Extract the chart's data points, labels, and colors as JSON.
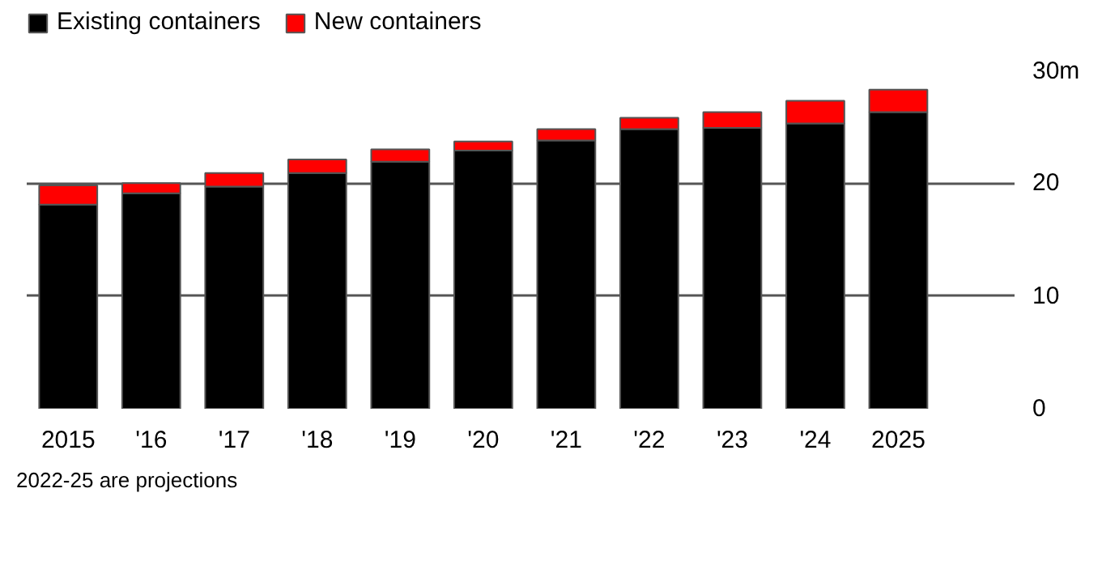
{
  "chart_data": {
    "type": "bar",
    "stacked": true,
    "categories": [
      "2015",
      "'16",
      "'17",
      "'18",
      "'19",
      "'20",
      "'21",
      "'22",
      "'23",
      "'24",
      "2025"
    ],
    "series": [
      {
        "name": "Existing containers",
        "color": "#000000",
        "values": [
          18.1,
          19.1,
          19.7,
          20.9,
          21.9,
          22.9,
          23.8,
          24.8,
          24.9,
          25.3,
          26.3
        ]
      },
      {
        "name": "New containers",
        "color": "#ff0000",
        "values": [
          1.7,
          0.9,
          1.2,
          1.2,
          1.1,
          0.8,
          1.0,
          1.0,
          1.4,
          2.0,
          2.0
        ]
      }
    ],
    "ylim": [
      0,
      30
    ],
    "yticks": [
      0,
      10,
      20,
      {
        "value": 30,
        "label": "30m"
      }
    ],
    "grid": "y",
    "legend": "top left",
    "annotations": [
      "2022-25 are projections"
    ]
  }
}
